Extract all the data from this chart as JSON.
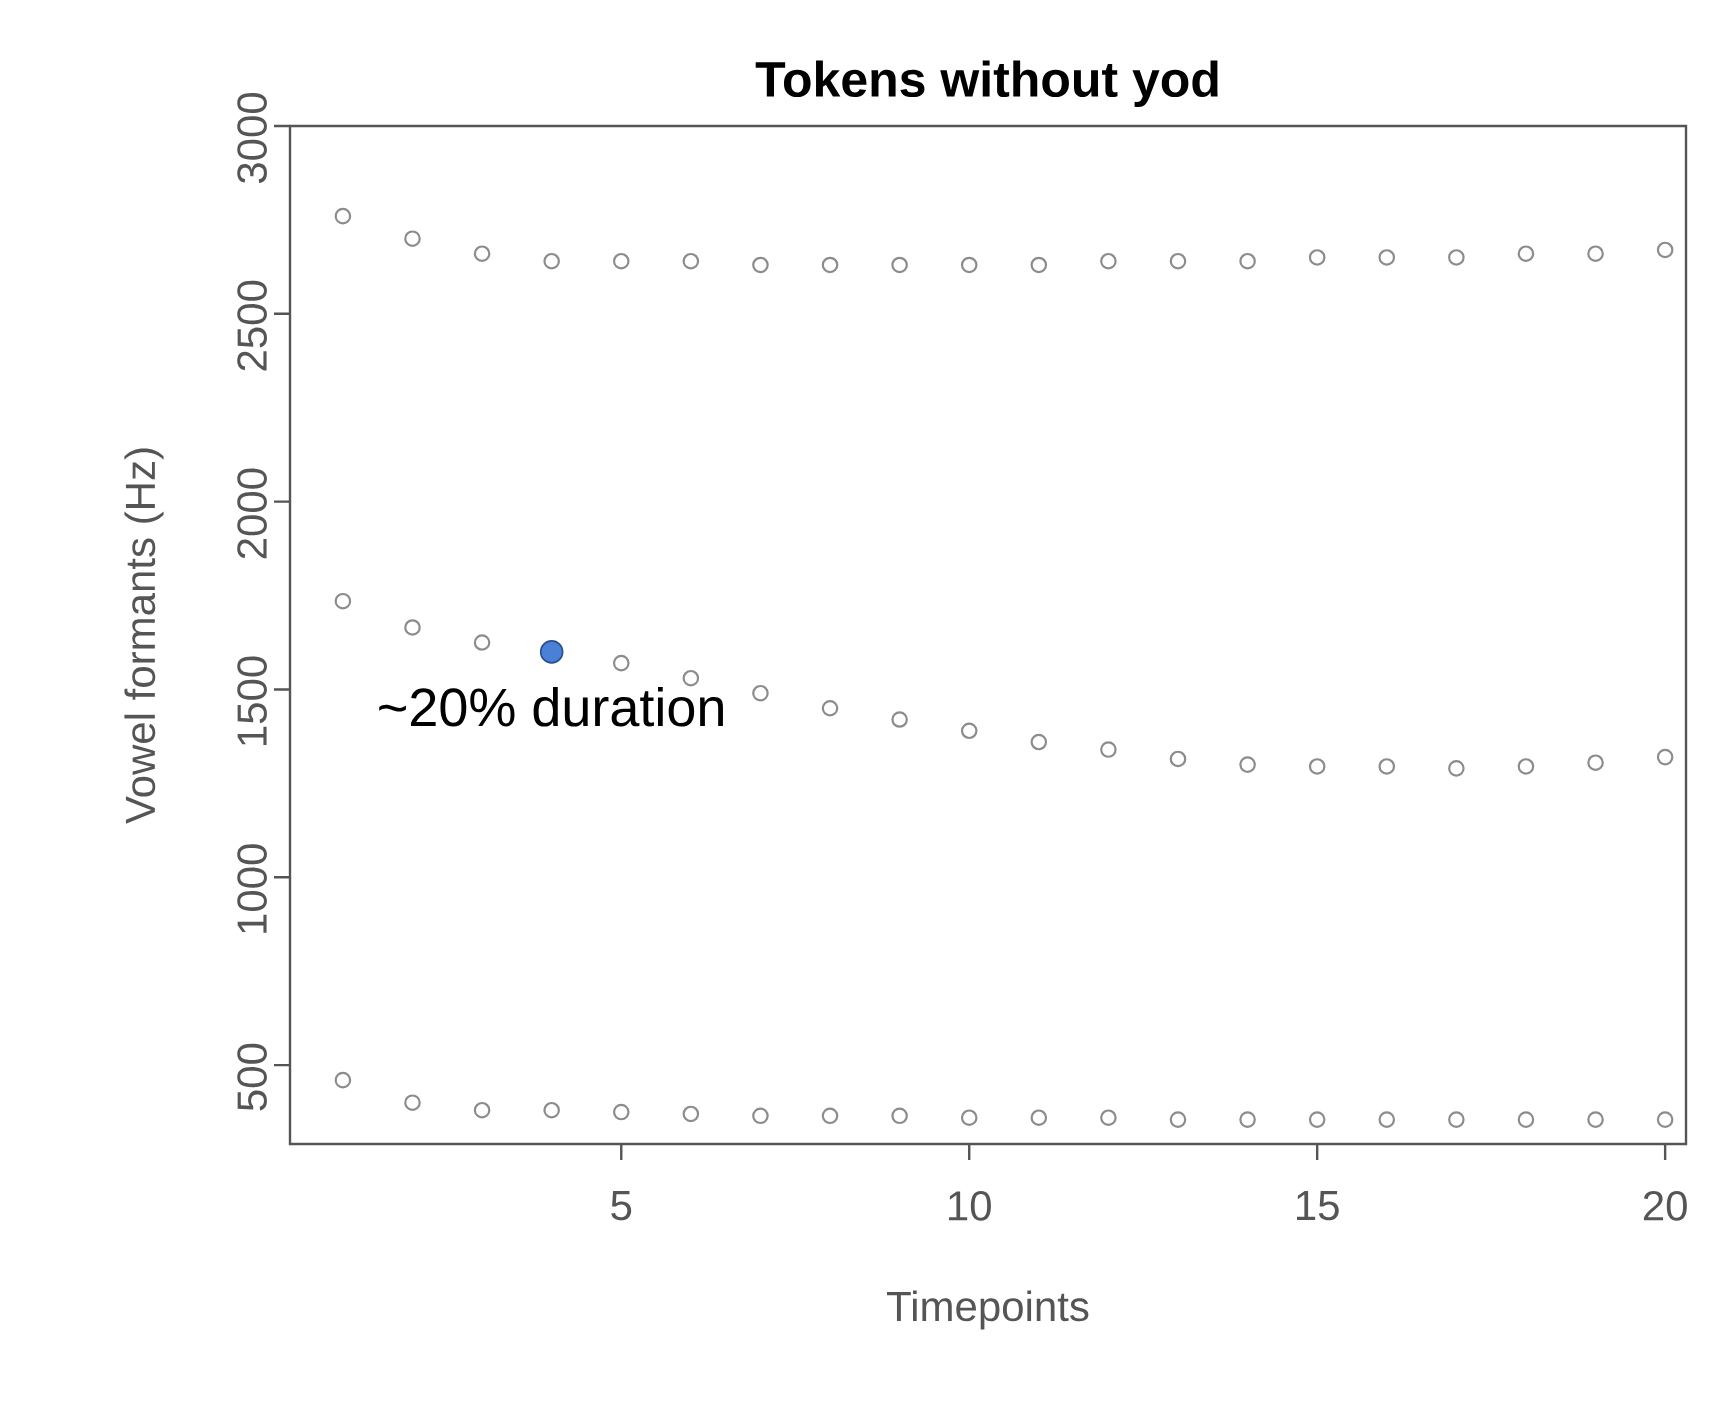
{
  "chart_data": {
    "type": "scatter",
    "title": "Tokens without yod",
    "xlabel": "Timepoints",
    "ylabel": "Vowel formants (Hz)",
    "x": [
      1,
      2,
      3,
      4,
      5,
      6,
      7,
      8,
      9,
      10,
      11,
      12,
      13,
      14,
      15,
      16,
      17,
      18,
      19,
      20
    ],
    "series": [
      {
        "color": "#8c8c8c",
        "values": [
          2760,
          2700,
          2660,
          2640,
          2640,
          2640,
          2630,
          2630,
          2630,
          2630,
          2630,
          2640,
          2640,
          2640,
          2650,
          2650,
          2650,
          2660,
          2660,
          2670
        ]
      },
      {
        "color": "#8c8c8c",
        "values": [
          1735,
          1665,
          1625,
          null,
          1570,
          1530,
          1490,
          1450,
          1420,
          1390,
          1360,
          1340,
          1315,
          1300,
          1295,
          1295,
          1290,
          1295,
          1305,
          1320
        ]
      },
      {
        "color": "#8c8c8c",
        "values": [
          460,
          400,
          380,
          380,
          375,
          370,
          365,
          365,
          365,
          360,
          360,
          360,
          355,
          355,
          355,
          355,
          355,
          355,
          355,
          355
        ]
      }
    ],
    "xlim": [
      0.24,
      20.3
    ],
    "ylim": [
      290,
      3000
    ],
    "xticks": [
      5,
      10,
      15,
      20
    ],
    "yticks": [
      500,
      1000,
      1500,
      2000,
      2500,
      3000
    ],
    "marker": "circle",
    "grid": false,
    "annotations": [
      {
        "text": "~20% duration",
        "x": 4,
        "y": 1600
      }
    ]
  }
}
